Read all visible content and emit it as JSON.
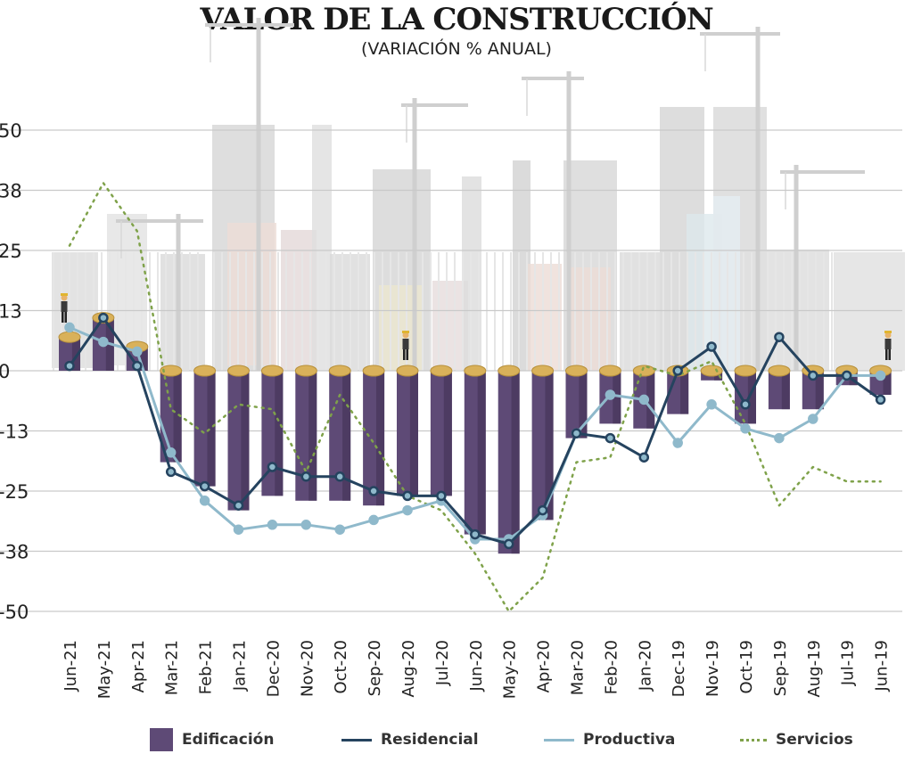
{
  "title": "VALOR DE LA CONSTRUCCIÓN",
  "subtitle": "(VARIACIÓN % ANUAL)",
  "colors": {
    "edificacion": "#5e4a76",
    "edificacion_dark": "#3f2f52",
    "coin": "#d9b15a",
    "residencial": "#25435f",
    "productiva": "#8fb9cb",
    "servicios": "#7fa24a",
    "grid": "#c9c9c9"
  },
  "legend": {
    "edificacion": "Edificación",
    "residencial": "Residencial",
    "productiva": "Productiva",
    "servicios": "Servicios"
  },
  "chart_data": {
    "type": "bar",
    "categories": [
      "Jun-21",
      "May-21",
      "Apr-21",
      "Mar-21",
      "Feb-21",
      "Jan-21",
      "Dec-20",
      "Nov-20",
      "Oct-20",
      "Sep-20",
      "Aug-20",
      "Jul-20",
      "Jun-20",
      "May-20",
      "Apr-20",
      "Mar-20",
      "Feb-20",
      "Jan-20",
      "Dec-19",
      "Nov-19",
      "Oct-19",
      "Sep-19",
      "Aug-19",
      "Jul-19",
      "Jun-19"
    ],
    "y_tick_labels": [
      "50",
      "38",
      "25",
      "13",
      "0",
      "-13",
      "-25",
      "-38",
      "-50"
    ],
    "ylim": [
      -50,
      50
    ],
    "series": [
      {
        "name": "Edificación",
        "type": "bar",
        "values": [
          7,
          11,
          5,
          -19,
          -24,
          -29,
          -26,
          -27,
          -27,
          -28,
          -26,
          -26,
          -34,
          -38,
          -31,
          -14,
          -11,
          -12,
          -9,
          -2,
          -11,
          -8,
          -8,
          -3,
          -5
        ]
      },
      {
        "name": "Residencial",
        "type": "line",
        "values": [
          1,
          11,
          1,
          -21,
          -24,
          -28,
          -20,
          -22,
          -22,
          -25,
          -26,
          -26,
          -34,
          -36,
          -29,
          -13,
          -14,
          -18,
          0,
          5,
          -7,
          7,
          -1,
          -1,
          -6
        ]
      },
      {
        "name": "Productiva",
        "type": "line",
        "values": [
          9,
          6,
          4,
          -17,
          -27,
          -33,
          -32,
          -32,
          -33,
          -31,
          -29,
          -27,
          -35,
          -35,
          -30,
          -13,
          -5,
          -6,
          -15,
          -7,
          -12,
          -14,
          -10,
          -1,
          -1
        ]
      },
      {
        "name": "Servicios",
        "type": "line",
        "values": [
          26,
          39,
          29,
          -8,
          -13,
          -7,
          -8,
          -21,
          -5,
          -15,
          -26,
          -29,
          -38,
          -50,
          -43,
          -19,
          -18,
          1,
          -1,
          2,
          -11,
          -28,
          -20,
          -23,
          -23
        ]
      }
    ]
  }
}
